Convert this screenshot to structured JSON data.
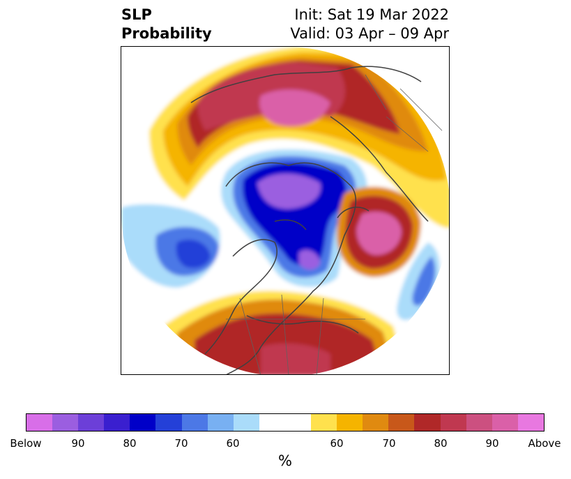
{
  "title": {
    "left_line1": "SLP",
    "left_line2": "Probability",
    "right_line1": "Init: Sat 19 Mar 2022",
    "right_line2": "Valid: 03 Apr – 09 Apr"
  },
  "colorbar": {
    "colors": [
      "#d86ee8",
      "#9b5ee0",
      "#6c3fd8",
      "#3a1fcf",
      "#0000c8",
      "#2440d8",
      "#4c78e6",
      "#78b0f2",
      "#aadcfa",
      "#ffffff",
      "#ffffff",
      "#ffe14d",
      "#f5b400",
      "#e08a10",
      "#c8581a",
      "#b02828",
      "#c03850",
      "#cc5080",
      "#da60a8",
      "#e878e0"
    ],
    "ticks": [
      {
        "label": "Below"
      },
      {
        "label": "90"
      },
      {
        "label": "80"
      },
      {
        "label": "70"
      },
      {
        "label": "60"
      },
      {
        "label": "60"
      },
      {
        "label": "70"
      },
      {
        "label": "80"
      },
      {
        "label": "90"
      },
      {
        "label": "Above"
      }
    ],
    "unit": "%"
  }
}
